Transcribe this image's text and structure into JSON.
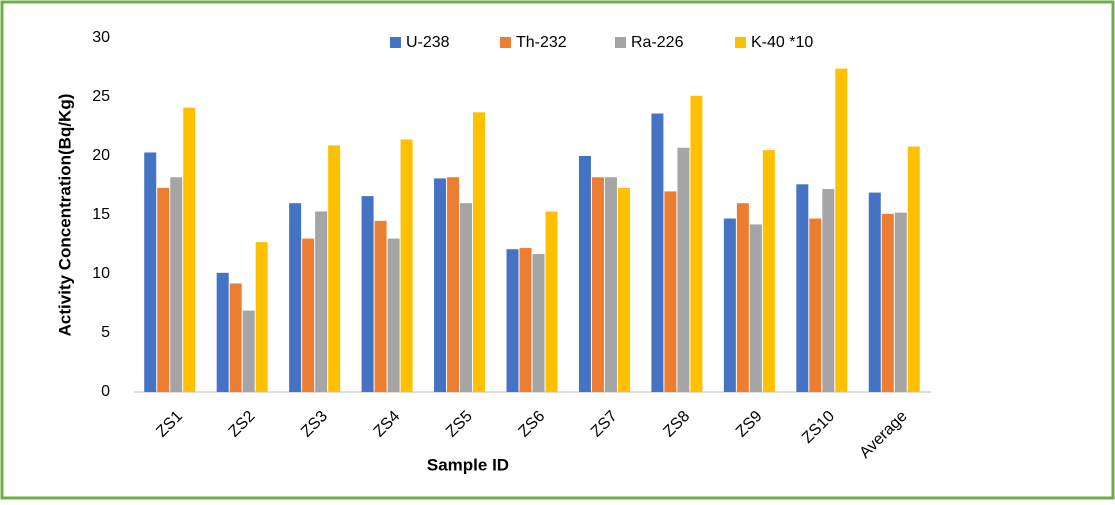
{
  "chart_data": {
    "type": "bar",
    "x_label": "Sample ID",
    "y_label": "Activity Concentration(Bq/Kg)",
    "categories": [
      "ZS1",
      "ZS2",
      "ZS3",
      "ZS4",
      "ZS5",
      "ZS6",
      "ZS7",
      "ZS8",
      "ZS9",
      "ZS10",
      "Average"
    ],
    "series": [
      {
        "name": "U-238",
        "color": "#4472c4",
        "values": [
          20.3,
          10.1,
          16,
          16.6,
          18.1,
          12.1,
          20,
          23.6,
          14.7,
          17.6,
          16.9
        ]
      },
      {
        "name": "Th-232",
        "color": "#ed7d31",
        "values": [
          17.3,
          9.2,
          13,
          14.5,
          18.2,
          12.2,
          18.2,
          17,
          16,
          14.7,
          15.1
        ]
      },
      {
        "name": "Ra-226",
        "color": "#a5a5a5",
        "values": [
          18.2,
          6.9,
          15.3,
          13,
          16,
          11.7,
          18.2,
          20.7,
          14.2,
          17.2,
          15.2
        ]
      },
      {
        "name": "K-40 *10",
        "color": "#ffc000",
        "values": [
          24.1,
          12.7,
          20.9,
          21.4,
          23.7,
          15.3,
          17.3,
          25.1,
          20.5,
          27.4,
          20.8
        ]
      }
    ],
    "ylim": [
      0,
      30
    ],
    "yticks": [
      0,
      5,
      10,
      15,
      20,
      25,
      30
    ],
    "grid": false,
    "legend": "top"
  }
}
